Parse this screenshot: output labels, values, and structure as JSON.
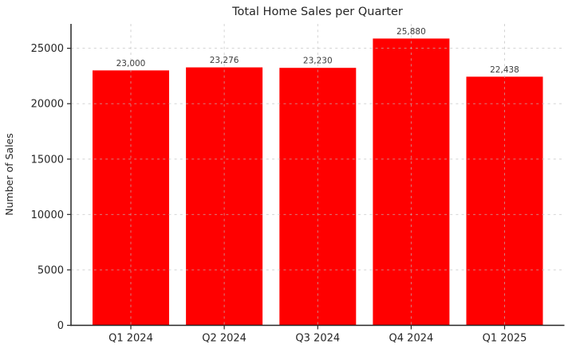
{
  "chart_data": {
    "type": "bar",
    "title": "Total Home Sales per Quarter",
    "xlabel": "",
    "ylabel": "Number of Sales",
    "categories": [
      "Q1 2024",
      "Q2 2024",
      "Q3 2024",
      "Q4 2024",
      "Q1 2025"
    ],
    "values": [
      23000,
      23276,
      23230,
      25880,
      22438
    ],
    "value_labels": [
      "23,000",
      "23,276",
      "23,230",
      "25,880",
      "22,438"
    ],
    "yticks": [
      0,
      5000,
      10000,
      15000,
      20000,
      25000
    ],
    "ytick_labels": [
      "0",
      "5000",
      "10000",
      "15000",
      "20000",
      "25000"
    ],
    "ylim": [
      0,
      27200
    ],
    "grid": "dashed-both-axes-over-bars",
    "legend": "none",
    "colors": {
      "bar": "#ff0000",
      "grid": "#bebebe",
      "spine": "#262626",
      "text": "#262626",
      "value_label": "#3d3d3d",
      "background": "#ffffff"
    }
  }
}
